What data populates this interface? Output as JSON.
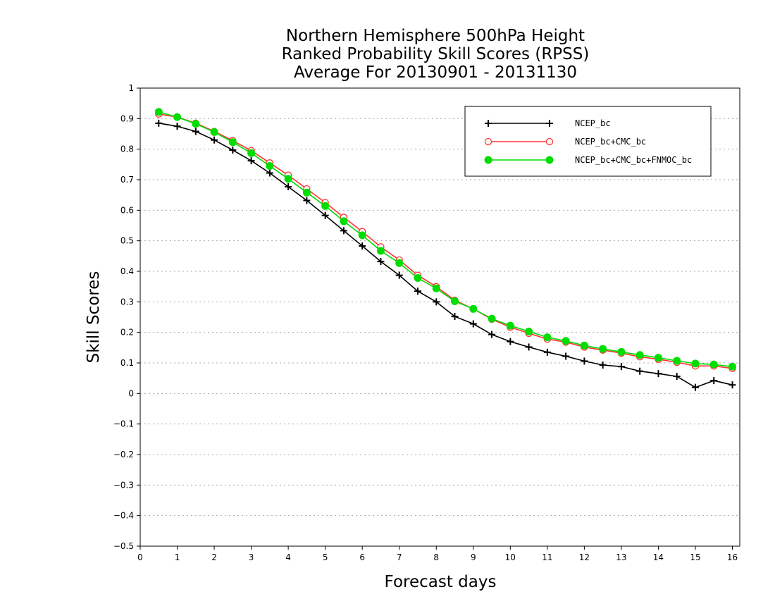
{
  "chart_data": {
    "type": "line",
    "title": [
      "Northern Hemisphere 500hPa Height",
      "Ranked Probability Skill Scores (RPSS)",
      "Average For 20130901 - 20131130"
    ],
    "xlabel": "Forecast days",
    "ylabel": "Skill Scores",
    "xlim": [
      0,
      16.2
    ],
    "ylim": [
      -0.5,
      1
    ],
    "x_ticks": [
      0,
      1,
      2,
      3,
      4,
      5,
      6,
      7,
      8,
      9,
      10,
      11,
      12,
      13,
      14,
      15,
      16
    ],
    "y_ticks": [
      -0.5,
      -0.4,
      -0.3,
      -0.2,
      -0.1,
      0,
      0.1,
      0.2,
      0.3,
      0.4,
      0.5,
      0.6,
      0.7,
      0.8,
      0.9,
      1
    ],
    "y_tick_labels": [
      "−0.5",
      "−0.4",
      "−0.3",
      "−0.2",
      "−0.1",
      "0",
      "0.1",
      "0.2",
      "0.3",
      "0.4",
      "0.5",
      "0.6",
      "0.7",
      "0.8",
      "0.9",
      "1"
    ],
    "grid": "horizontal dotted",
    "legend_position": "top-right",
    "x": [
      0.5,
      1,
      1.5,
      2,
      2.5,
      3,
      3.5,
      4,
      4.5,
      5,
      5.5,
      6,
      6.5,
      7,
      7.5,
      8,
      8.5,
      9,
      9.5,
      10,
      10.5,
      11,
      11.5,
      12,
      12.5,
      13,
      13.5,
      14,
      14.5,
      15,
      15.5,
      16
    ],
    "series": [
      {
        "name": "NCEP_bc",
        "color": "#000000",
        "marker": "plus",
        "values": [
          0.885,
          0.875,
          0.858,
          0.83,
          0.797,
          0.762,
          0.722,
          0.677,
          0.632,
          0.583,
          0.533,
          0.483,
          0.432,
          0.387,
          0.335,
          0.3,
          0.252,
          0.228,
          0.193,
          0.17,
          0.152,
          0.135,
          0.122,
          0.106,
          0.093,
          0.088,
          0.073,
          0.065,
          0.056,
          0.02,
          0.042,
          0.028
        ]
      },
      {
        "name": "NCEP_bc+CMC_bc",
        "color": "#ff3333",
        "marker": "open-circle",
        "values": [
          0.915,
          0.905,
          0.885,
          0.858,
          0.828,
          0.795,
          0.755,
          0.715,
          0.67,
          0.625,
          0.577,
          0.53,
          0.48,
          0.437,
          0.387,
          0.35,
          0.305,
          0.277,
          0.243,
          0.217,
          0.197,
          0.178,
          0.168,
          0.152,
          0.142,
          0.132,
          0.12,
          0.112,
          0.102,
          0.09,
          0.09,
          0.082
        ]
      },
      {
        "name": "NCEP_bc+CMC_bc+FNMOC_bc",
        "color": "#00dd00",
        "marker": "filled-circle",
        "values": [
          0.922,
          0.905,
          0.883,
          0.856,
          0.823,
          0.787,
          0.745,
          0.703,
          0.658,
          0.614,
          0.564,
          0.518,
          0.467,
          0.427,
          0.378,
          0.344,
          0.302,
          0.277,
          0.245,
          0.222,
          0.203,
          0.184,
          0.172,
          0.157,
          0.146,
          0.136,
          0.126,
          0.117,
          0.107,
          0.098,
          0.095,
          0.088
        ]
      }
    ]
  }
}
